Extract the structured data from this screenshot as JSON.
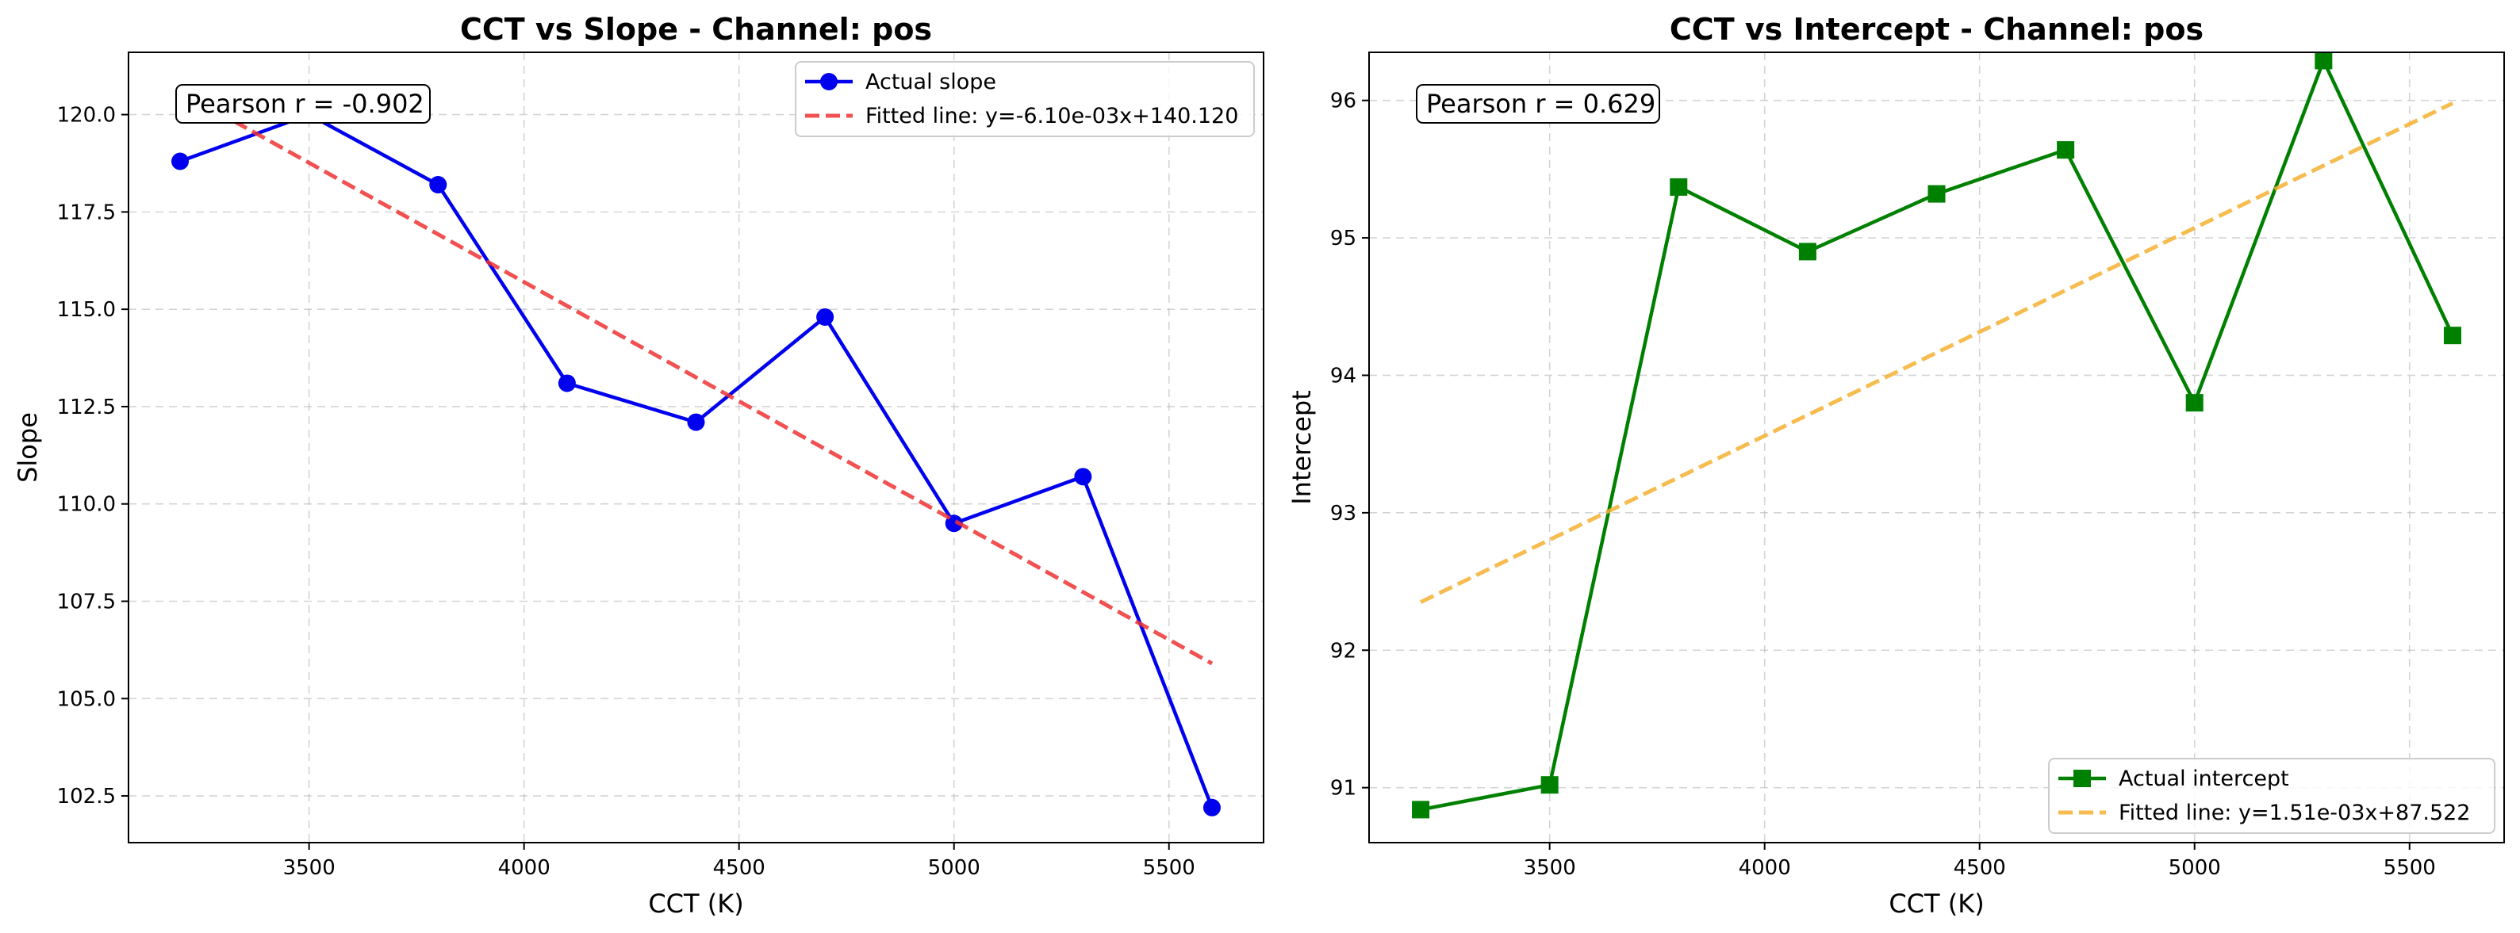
{
  "chart_data": [
    {
      "type": "line",
      "title": "CCT vs Slope - Channel: pos",
      "xlabel": "CCT (K)",
      "ylabel": "Slope",
      "xlim": [
        3080,
        5720
      ],
      "ylim": [
        101.3,
        121.6
      ],
      "xticks": [
        3500,
        4000,
        4500,
        5000,
        5500
      ],
      "yticks": [
        102.5,
        105.0,
        107.5,
        110.0,
        112.5,
        115.0,
        117.5,
        120.0
      ],
      "ytick_labels": [
        "102.5",
        "105.0",
        "107.5",
        "110.0",
        "112.5",
        "115.0",
        "117.5",
        "120.0"
      ],
      "grid": true,
      "legend_position": "top-right",
      "annotation": "Pearson r = -0.902",
      "series": [
        {
          "name": "Actual slope",
          "style": "solid-marker-circle",
          "color": "#0000ee",
          "x": [
            3200,
            3500,
            3800,
            4100,
            4400,
            4700,
            5000,
            5300,
            5600
          ],
          "y": [
            118.8,
            120.0,
            118.2,
            113.1,
            112.1,
            114.8,
            109.5,
            110.7,
            102.2
          ]
        },
        {
          "name": "Fitted line: y=-6.10e-03x+140.120",
          "style": "dashed",
          "color": "#ee3333",
          "x": [
            3200,
            5600
          ],
          "y": [
            120.6,
            105.9
          ]
        }
      ]
    },
    {
      "type": "line",
      "title": "CCT vs Intercept - Channel: pos",
      "xlabel": "CCT (K)",
      "ylabel": "Intercept",
      "xlim": [
        3080,
        5720
      ],
      "ylim": [
        90.6,
        96.35
      ],
      "xticks": [
        3500,
        4000,
        4500,
        5000,
        5500
      ],
      "yticks": [
        91,
        92,
        93,
        94,
        95,
        96
      ],
      "ytick_labels": [
        "91",
        "92",
        "93",
        "94",
        "95",
        "96"
      ],
      "grid": true,
      "legend_position": "bottom-right",
      "annotation": "Pearson r = 0.629",
      "series": [
        {
          "name": "Actual intercept",
          "style": "solid-marker-square",
          "color": "#008000",
          "x": [
            3200,
            3500,
            3800,
            4100,
            4400,
            4700,
            5000,
            5300,
            5600
          ],
          "y": [
            90.84,
            91.02,
            95.37,
            94.9,
            95.32,
            95.64,
            93.8,
            96.29,
            94.29
          ]
        },
        {
          "name": "Fitted line: y=1.51e-03x+87.522",
          "style": "dashed",
          "color": "#f5b031",
          "x": [
            3200,
            5600
          ],
          "y": [
            92.35,
            95.98
          ]
        }
      ]
    }
  ]
}
